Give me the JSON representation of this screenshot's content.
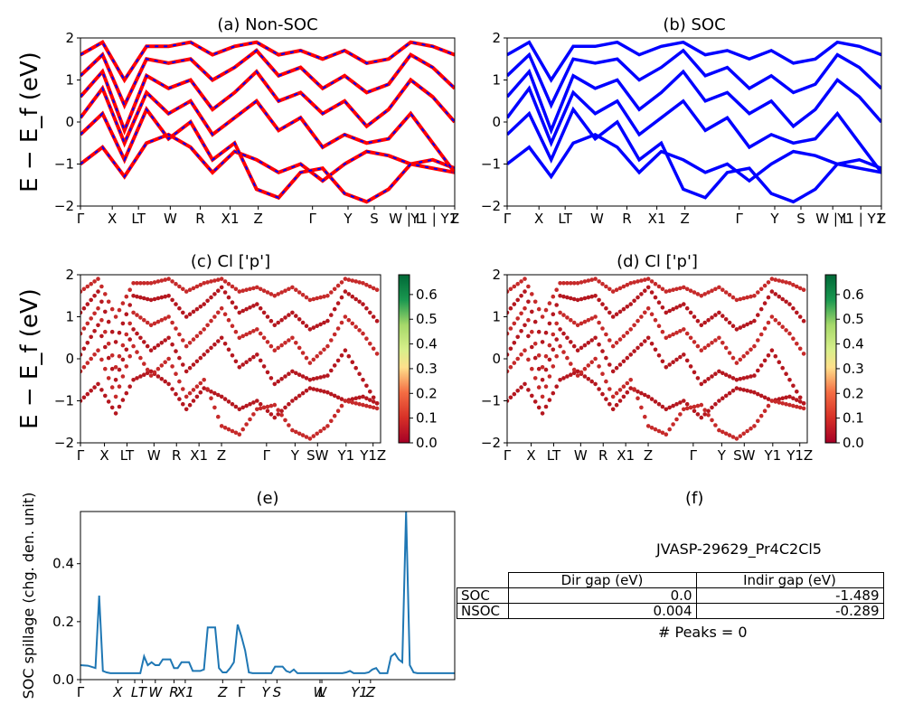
{
  "chart_data": [
    {
      "panel": "a",
      "type": "line",
      "title": "(a) Non-SOC",
      "ylabel": "E − E_f (eV)",
      "ylim": [
        -2,
        2
      ],
      "yticks": [
        -2,
        -1,
        0,
        1,
        2
      ],
      "xticks": [
        "Γ",
        "X",
        "LT",
        "W",
        "R",
        "X1",
        "Z",
        "Γ",
        "Y",
        "S",
        "W | L",
        "Y1 | Y1",
        "Z"
      ],
      "series": [
        {
          "values": [
            -1.0,
            -0.6,
            -1.3,
            -0.5,
            -0.3,
            -0.6,
            -1.2,
            -0.7,
            -0.9,
            -1.2,
            -1.0,
            -1.4,
            -1.0,
            -0.7,
            -0.8,
            -1.0,
            -0.9,
            -1.1
          ]
        },
        {
          "values": [
            -0.3,
            0.2,
            -0.9,
            0.3,
            -0.4,
            0.0,
            -0.9,
            -0.5,
            -1.6,
            -1.8,
            -1.2,
            -1.1,
            -1.7,
            -1.9,
            -1.6,
            -1.0,
            -1.1,
            -1.2
          ]
        },
        {
          "values": [
            0.1,
            0.8,
            -0.5,
            0.7,
            0.2,
            0.5,
            -0.3,
            0.1,
            0.5,
            -0.2,
            0.1,
            -0.6,
            -0.3,
            -0.5,
            -0.4,
            0.2,
            -0.5,
            -1.2
          ]
        },
        {
          "values": [
            0.6,
            1.2,
            -0.2,
            1.1,
            0.8,
            1.0,
            0.3,
            0.7,
            1.2,
            0.5,
            0.7,
            0.2,
            0.5,
            -0.1,
            0.3,
            1.0,
            0.6,
            0.0
          ]
        },
        {
          "values": [
            1.1,
            1.6,
            0.4,
            1.5,
            1.4,
            1.5,
            1.0,
            1.3,
            1.7,
            1.1,
            1.3,
            0.8,
            1.1,
            0.7,
            0.9,
            1.6,
            1.3,
            0.8
          ]
        },
        {
          "values": [
            1.6,
            1.9,
            1.0,
            1.8,
            1.8,
            1.9,
            1.6,
            1.8,
            1.9,
            1.6,
            1.7,
            1.5,
            1.7,
            1.4,
            1.5,
            1.9,
            1.8,
            1.6
          ]
        }
      ]
    },
    {
      "panel": "b",
      "type": "line",
      "title": "(b) SOC",
      "ylim": [
        -2,
        2
      ],
      "yticks": [
        -2,
        -1,
        0,
        1,
        2
      ],
      "xticks": [
        "Γ",
        "X",
        "LT",
        "W",
        "R",
        "X1",
        "Z",
        "Γ",
        "Y",
        "S",
        "W | L",
        "Y1 | Y1",
        "Z"
      ],
      "series": [
        {
          "values": [
            -1.0,
            -0.6,
            -1.3,
            -0.5,
            -0.3,
            -0.6,
            -1.2,
            -0.7,
            -0.9,
            -1.2,
            -1.0,
            -1.4,
            -1.0,
            -0.7,
            -0.8,
            -1.0,
            -0.9,
            -1.1
          ]
        },
        {
          "values": [
            -0.3,
            0.2,
            -0.9,
            0.3,
            -0.4,
            0.0,
            -0.9,
            -0.5,
            -1.6,
            -1.8,
            -1.2,
            -1.1,
            -1.7,
            -1.9,
            -1.6,
            -1.0,
            -1.1,
            -1.2
          ]
        },
        {
          "values": [
            0.1,
            0.8,
            -0.5,
            0.7,
            0.2,
            0.5,
            -0.3,
            0.1,
            0.5,
            -0.2,
            0.1,
            -0.6,
            -0.3,
            -0.5,
            -0.4,
            0.2,
            -0.5,
            -1.2
          ]
        },
        {
          "values": [
            0.6,
            1.2,
            -0.2,
            1.1,
            0.8,
            1.0,
            0.3,
            0.7,
            1.2,
            0.5,
            0.7,
            0.2,
            0.5,
            -0.1,
            0.3,
            1.0,
            0.6,
            0.0
          ]
        },
        {
          "values": [
            1.1,
            1.6,
            0.4,
            1.5,
            1.4,
            1.5,
            1.0,
            1.3,
            1.7,
            1.1,
            1.3,
            0.8,
            1.1,
            0.7,
            0.9,
            1.6,
            1.3,
            0.8
          ]
        },
        {
          "values": [
            1.6,
            1.9,
            1.0,
            1.8,
            1.8,
            1.9,
            1.6,
            1.8,
            1.9,
            1.6,
            1.7,
            1.5,
            1.7,
            1.4,
            1.5,
            1.9,
            1.8,
            1.6
          ]
        }
      ]
    },
    {
      "panel": "c",
      "type": "scatter",
      "title": "(c)  Cl ['p']",
      "ylabel": "E − E_f (eV)",
      "ylim": [
        -2,
        2
      ],
      "yticks": [
        -2,
        -1,
        0,
        1,
        2
      ],
      "xticks": [
        "Γ",
        "X",
        "LT",
        "W",
        "R",
        "X1",
        "Z",
        "Γ",
        "Y",
        "SW",
        "Y1",
        "Y1Z"
      ],
      "colorbar": {
        "ticks": [
          0.0,
          0.1,
          0.2,
          0.3,
          0.4,
          0.5,
          0.6
        ],
        "range": [
          0,
          0.68
        ],
        "colormap": "RdYlGn"
      },
      "series": [
        {
          "values": [
            -1.0,
            -0.6,
            -1.3,
            -0.5,
            -0.3,
            -0.6,
            -1.2,
            -0.7,
            -0.9,
            -1.2,
            -1.0,
            -1.4,
            -1.0,
            -0.7,
            -0.8,
            -1.0,
            -0.9,
            -1.1
          ]
        },
        {
          "values": [
            -0.3,
            0.2,
            -0.9,
            0.3,
            -0.4,
            0.0,
            -0.9,
            -0.5,
            -1.6,
            -1.8,
            -1.2,
            -1.1,
            -1.7,
            -1.9,
            -1.6,
            -1.0,
            -1.1,
            -1.2
          ]
        },
        {
          "values": [
            0.1,
            0.8,
            -0.5,
            0.7,
            0.2,
            0.5,
            -0.3,
            0.1,
            0.5,
            -0.2,
            0.1,
            -0.6,
            -0.3,
            -0.5,
            -0.4,
            0.2,
            -0.5,
            -1.2
          ]
        },
        {
          "values": [
            0.6,
            1.2,
            -0.2,
            1.1,
            0.8,
            1.0,
            0.3,
            0.7,
            1.2,
            0.5,
            0.7,
            0.2,
            0.5,
            -0.1,
            0.3,
            1.0,
            0.6,
            0.0
          ]
        },
        {
          "values": [
            1.1,
            1.6,
            0.4,
            1.5,
            1.4,
            1.5,
            1.0,
            1.3,
            1.7,
            1.1,
            1.3,
            0.8,
            1.1,
            0.7,
            0.9,
            1.6,
            1.3,
            0.8
          ]
        },
        {
          "values": [
            1.6,
            1.9,
            1.0,
            1.8,
            1.8,
            1.9,
            1.6,
            1.8,
            1.9,
            1.6,
            1.7,
            1.5,
            1.7,
            1.4,
            1.5,
            1.9,
            1.8,
            1.6
          ]
        }
      ]
    },
    {
      "panel": "d",
      "type": "scatter",
      "title": "(d) Cl ['p']",
      "ylim": [
        -2,
        2
      ],
      "yticks": [
        -2,
        -1,
        0,
        1,
        2
      ],
      "xticks": [
        "Γ",
        "X",
        "LT",
        "W",
        "R",
        "X1",
        "Z",
        "Γ",
        "Y",
        "SW",
        "Y1",
        "Y1Z"
      ],
      "colorbar": {
        "ticks": [
          0.0,
          0.1,
          0.2,
          0.3,
          0.4,
          0.5,
          0.6
        ],
        "range": [
          0,
          0.68
        ],
        "colormap": "RdYlGn"
      },
      "series": [
        {
          "values": [
            -1.0,
            -0.6,
            -1.3,
            -0.5,
            -0.3,
            -0.6,
            -1.2,
            -0.7,
            -0.9,
            -1.2,
            -1.0,
            -1.4,
            -1.0,
            -0.7,
            -0.8,
            -1.0,
            -0.9,
            -1.1
          ]
        },
        {
          "values": [
            -0.3,
            0.2,
            -0.9,
            0.3,
            -0.4,
            0.0,
            -0.9,
            -0.5,
            -1.6,
            -1.8,
            -1.2,
            -1.1,
            -1.7,
            -1.9,
            -1.6,
            -1.0,
            -1.1,
            -1.2
          ]
        },
        {
          "values": [
            0.1,
            0.8,
            -0.5,
            0.7,
            0.2,
            0.5,
            -0.3,
            0.1,
            0.5,
            -0.2,
            0.1,
            -0.6,
            -0.3,
            -0.5,
            -0.4,
            0.2,
            -0.5,
            -1.2
          ]
        },
        {
          "values": [
            0.6,
            1.2,
            -0.2,
            1.1,
            0.8,
            1.0,
            0.3,
            0.7,
            1.2,
            0.5,
            0.7,
            0.2,
            0.5,
            -0.1,
            0.3,
            1.0,
            0.6,
            0.0
          ]
        },
        {
          "values": [
            1.1,
            1.6,
            0.4,
            1.5,
            1.4,
            1.5,
            1.0,
            1.3,
            1.7,
            1.1,
            1.3,
            0.8,
            1.1,
            0.7,
            0.9,
            1.6,
            1.3,
            0.8
          ]
        },
        {
          "values": [
            1.6,
            1.9,
            1.0,
            1.8,
            1.8,
            1.9,
            1.6,
            1.8,
            1.9,
            1.6,
            1.7,
            1.5,
            1.7,
            1.4,
            1.5,
            1.9,
            1.8,
            1.6
          ]
        }
      ]
    },
    {
      "panel": "e",
      "type": "line",
      "title": "(e)",
      "ylabel": "SOC spillage (chg. den. unit)",
      "ylim": [
        0,
        0.58
      ],
      "yticks": [
        0.0,
        0.2,
        0.4
      ],
      "xticks": [
        "Γ",
        "X",
        "L",
        "T",
        "W",
        "R",
        "X1",
        "Z",
        "Γ",
        "Y",
        "S",
        "W",
        "L",
        "Y1",
        "Z"
      ],
      "x": [
        0,
        2,
        4,
        5,
        6,
        7,
        8,
        9,
        10,
        11,
        12,
        13,
        14,
        15,
        16,
        17,
        18,
        19,
        20,
        21,
        22,
        23,
        24,
        25,
        26,
        27,
        28,
        29,
        30,
        31,
        32,
        33,
        34,
        35,
        36,
        37,
        38,
        39,
        40,
        41,
        42,
        43,
        44,
        45,
        46,
        47,
        48,
        49,
        50,
        51,
        52,
        53,
        54,
        55,
        56,
        57,
        58,
        59,
        60,
        61,
        62,
        63,
        64,
        65,
        66,
        67,
        68,
        69,
        70,
        71,
        72,
        73,
        74,
        75,
        76,
        77,
        78,
        79,
        80,
        81,
        82,
        83,
        84,
        85,
        86,
        87,
        88,
        89,
        90,
        91,
        92,
        93,
        94,
        95,
        96,
        97,
        98,
        99,
        100
      ],
      "values": [
        0.05,
        0.048,
        0.04,
        0.29,
        0.03,
        0.025,
        0.022,
        0.022,
        0.022,
        0.022,
        0.022,
        0.022,
        0.022,
        0.022,
        0.022,
        0.08,
        0.05,
        0.06,
        0.05,
        0.05,
        0.07,
        0.07,
        0.07,
        0.04,
        0.04,
        0.06,
        0.06,
        0.06,
        0.03,
        0.03,
        0.03,
        0.035,
        0.18,
        0.18,
        0.18,
        0.04,
        0.025,
        0.025,
        0.04,
        0.06,
        0.19,
        0.15,
        0.1,
        0.025,
        0.022,
        0.022,
        0.022,
        0.022,
        0.022,
        0.022,
        0.045,
        0.045,
        0.045,
        0.03,
        0.025,
        0.035,
        0.022,
        0.022,
        0.022,
        0.022,
        0.022,
        0.022,
        0.022,
        0.022,
        0.022,
        0.022,
        0.022,
        0.022,
        0.022,
        0.025,
        0.03,
        0.022,
        0.022,
        0.022,
        0.022,
        0.025,
        0.035,
        0.04,
        0.022,
        0.022,
        0.022,
        0.08,
        0.09,
        0.07,
        0.06,
        0.58,
        0.05,
        0.025,
        0.022,
        0.022,
        0.022,
        0.022,
        0.022,
        0.022,
        0.022,
        0.022,
        0.022,
        0.022,
        0.022
      ]
    }
  ],
  "panel_f": {
    "title": "(f)",
    "material": "JVASP-29629_Pr4C2Cl5",
    "header": [
      "Dir gap (eV)",
      "Indir gap (eV)"
    ],
    "rows": [
      {
        "label": "SOC",
        "dir": "0.0",
        "indir": "-1.489"
      },
      {
        "label": "NSOC",
        "dir": "0.004",
        "indir": "-0.289"
      }
    ],
    "peaks": "# Peaks = 0"
  },
  "colors": {
    "nonsoc_main": "#ff0000",
    "nonsoc_dash": "#0000ff",
    "soc": "#0000ff",
    "spillage": "#1f77b4"
  }
}
